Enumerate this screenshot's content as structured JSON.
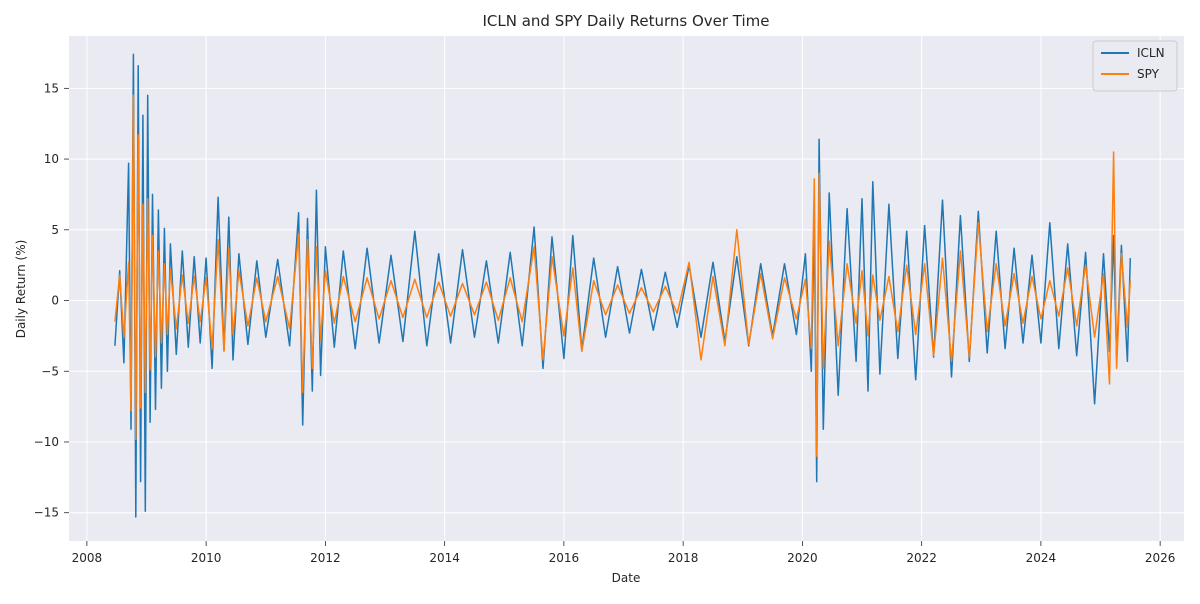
{
  "chart_data": {
    "type": "line",
    "title": "ICLN and SPY Daily Returns Over Time",
    "xlabel": "Date",
    "ylabel": "Daily Return (%)",
    "xlim": [
      2007.7,
      2026.4
    ],
    "ylim": [
      -17.0,
      18.7
    ],
    "x_ticks": [
      2008,
      2010,
      2012,
      2014,
      2016,
      2018,
      2020,
      2022,
      2024,
      2026
    ],
    "x_tick_labels": [
      "2008",
      "2010",
      "2012",
      "2014",
      "2016",
      "2018",
      "2020",
      "2022",
      "2024",
      "2026"
    ],
    "y_ticks": [
      -15,
      -10,
      -5,
      0,
      5,
      10,
      15
    ],
    "y_tick_labels": [
      "−15",
      "−10",
      "−5",
      "0",
      "5",
      "10",
      "15"
    ],
    "grid": true,
    "legend_position": "top-right",
    "series": [
      {
        "name": "ICLN",
        "color": "#1f77b4",
        "x": [
          2008.47,
          2008.55,
          2008.62,
          2008.7,
          2008.74,
          2008.78,
          2008.82,
          2008.86,
          2008.9,
          2008.94,
          2008.98,
          2009.02,
          2009.06,
          2009.1,
          2009.15,
          2009.2,
          2009.25,
          2009.3,
          2009.35,
          2009.4,
          2009.5,
          2009.6,
          2009.7,
          2009.8,
          2009.9,
          2010.0,
          2010.1,
          2010.2,
          2010.3,
          2010.38,
          2010.45,
          2010.55,
          2010.7,
          2010.85,
          2011.0,
          2011.2,
          2011.4,
          2011.55,
          2011.62,
          2011.7,
          2011.78,
          2011.85,
          2011.92,
          2012.0,
          2012.15,
          2012.3,
          2012.5,
          2012.7,
          2012.9,
          2013.1,
          2013.3,
          2013.5,
          2013.7,
          2013.9,
          2014.1,
          2014.3,
          2014.5,
          2014.7,
          2014.9,
          2015.1,
          2015.3,
          2015.5,
          2015.65,
          2015.8,
          2016.0,
          2016.15,
          2016.3,
          2016.5,
          2016.7,
          2016.9,
          2017.1,
          2017.3,
          2017.5,
          2017.7,
          2017.9,
          2018.1,
          2018.3,
          2018.5,
          2018.7,
          2018.9,
          2019.1,
          2019.3,
          2019.5,
          2019.7,
          2019.9,
          2020.05,
          2020.15,
          2020.2,
          2020.24,
          2020.28,
          2020.35,
          2020.45,
          2020.6,
          2020.75,
          2020.9,
          2021.0,
          2021.1,
          2021.18,
          2021.3,
          2021.45,
          2021.6,
          2021.75,
          2021.9,
          2022.05,
          2022.2,
          2022.35,
          2022.5,
          2022.65,
          2022.8,
          2022.95,
          2023.1,
          2023.25,
          2023.4,
          2023.55,
          2023.7,
          2023.85,
          2024.0,
          2024.15,
          2024.3,
          2024.45,
          2024.6,
          2024.75,
          2024.9,
          2025.05,
          2025.15,
          2025.22,
          2025.27,
          2025.35,
          2025.45,
          2025.5
        ],
        "y": [
          -3.2,
          2.1,
          -4.4,
          9.7,
          -9.1,
          17.4,
          -15.3,
          16.6,
          -12.8,
          13.1,
          -14.9,
          14.5,
          -8.6,
          7.5,
          -7.7,
          6.4,
          -6.2,
          5.1,
          -5.0,
          4.0,
          -3.8,
          3.5,
          -3.3,
          3.1,
          -3.0,
          3.0,
          -4.8,
          7.3,
          -3.5,
          5.9,
          -4.2,
          3.3,
          -3.1,
          2.8,
          -2.6,
          2.9,
          -3.2,
          6.2,
          -8.8,
          5.8,
          -6.4,
          7.8,
          -5.3,
          3.8,
          -3.3,
          3.5,
          -3.4,
          3.7,
          -3.0,
          3.2,
          -2.9,
          4.9,
          -3.2,
          3.3,
          -3.0,
          3.6,
          -2.6,
          2.8,
          -3.0,
          3.4,
          -3.2,
          5.2,
          -4.8,
          4.5,
          -4.1,
          4.6,
          -3.5,
          3.0,
          -2.6,
          2.4,
          -2.3,
          2.2,
          -2.1,
          2.0,
          -1.9,
          2.5,
          -2.6,
          2.7,
          -2.9,
          3.1,
          -3.2,
          2.6,
          -2.5,
          2.6,
          -2.4,
          3.3,
          -5.0,
          5.5,
          -12.8,
          11.4,
          -9.1,
          7.6,
          -6.7,
          6.5,
          -4.3,
          7.2,
          -6.4,
          8.4,
          -5.2,
          6.8,
          -4.1,
          4.9,
          -5.6,
          5.3,
          -4.0,
          7.1,
          -5.4,
          6.0,
          -4.3,
          6.3,
          -3.7,
          4.9,
          -3.4,
          3.7,
          -3.0,
          3.2,
          -3.0,
          5.5,
          -3.4,
          4.0,
          -3.9,
          3.4,
          -7.3,
          3.3,
          -3.6,
          4.6,
          -4.1,
          3.9,
          -4.3,
          3.0
        ]
      },
      {
        "name": "SPY",
        "color": "#ff7f0e",
        "x": [
          2008.47,
          2008.55,
          2008.62,
          2008.7,
          2008.74,
          2008.78,
          2008.82,
          2008.86,
          2008.9,
          2008.94,
          2008.98,
          2009.02,
          2009.06,
          2009.1,
          2009.15,
          2009.2,
          2009.25,
          2009.3,
          2009.35,
          2009.4,
          2009.5,
          2009.6,
          2009.7,
          2009.8,
          2009.9,
          2010.0,
          2010.1,
          2010.2,
          2010.3,
          2010.38,
          2010.45,
          2010.55,
          2010.7,
          2010.85,
          2011.0,
          2011.2,
          2011.4,
          2011.55,
          2011.62,
          2011.7,
          2011.78,
          2011.85,
          2011.92,
          2012.0,
          2012.15,
          2012.3,
          2012.5,
          2012.7,
          2012.9,
          2013.1,
          2013.3,
          2013.5,
          2013.7,
          2013.9,
          2014.1,
          2014.3,
          2014.5,
          2014.7,
          2014.9,
          2015.1,
          2015.3,
          2015.5,
          2015.65,
          2015.8,
          2016.0,
          2016.15,
          2016.3,
          2016.5,
          2016.7,
          2016.9,
          2017.1,
          2017.3,
          2017.5,
          2017.7,
          2017.9,
          2018.1,
          2018.3,
          2018.5,
          2018.7,
          2018.9,
          2019.1,
          2019.3,
          2019.5,
          2019.7,
          2019.9,
          2020.05,
          2020.15,
          2020.2,
          2020.24,
          2020.28,
          2020.35,
          2020.45,
          2020.6,
          2020.75,
          2020.9,
          2021.0,
          2021.1,
          2021.18,
          2021.3,
          2021.45,
          2021.6,
          2021.75,
          2021.9,
          2022.05,
          2022.2,
          2022.35,
          2022.5,
          2022.65,
          2022.8,
          2022.95,
          2023.1,
          2023.25,
          2023.4,
          2023.55,
          2023.7,
          2023.85,
          2024.0,
          2024.15,
          2024.3,
          2024.45,
          2024.6,
          2024.75,
          2024.9,
          2025.05,
          2025.15,
          2025.22,
          2025.27,
          2025.35,
          2025.45,
          2025.5
        ],
        "y": [
          -1.5,
          1.8,
          -2.6,
          2.7,
          -7.8,
          14.5,
          -9.8,
          11.7,
          -7.6,
          6.8,
          -6.5,
          7.2,
          -4.9,
          4.6,
          -4.0,
          3.5,
          -3.0,
          2.6,
          -2.4,
          2.2,
          -2.0,
          1.8,
          -1.6,
          1.7,
          -1.5,
          1.6,
          -3.4,
          4.3,
          -3.6,
          3.7,
          -2.4,
          2.1,
          -1.8,
          1.6,
          -1.5,
          1.7,
          -2.0,
          4.7,
          -6.5,
          4.3,
          -4.8,
          3.8,
          -2.8,
          2.1,
          -1.6,
          1.7,
          -1.5,
          1.6,
          -1.3,
          1.4,
          -1.2,
          1.5,
          -1.2,
          1.3,
          -1.1,
          1.2,
          -1.0,
          1.3,
          -1.4,
          1.6,
          -1.5,
          3.8,
          -4.2,
          3.1,
          -2.5,
          2.3,
          -3.6,
          1.4,
          -1.0,
          1.1,
          -0.9,
          0.9,
          -0.8,
          1.0,
          -0.9,
          2.7,
          -4.2,
          1.7,
          -3.2,
          5.0,
          -3.1,
          1.9,
          -2.7,
          1.6,
          -1.3,
          1.5,
          -3.4,
          8.6,
          -11.0,
          9.0,
          -4.8,
          4.2,
          -3.2,
          2.6,
          -1.6,
          2.1,
          -2.5,
          1.8,
          -1.4,
          1.7,
          -2.2,
          2.5,
          -2.4,
          2.6,
          -3.9,
          3.0,
          -4.3,
          3.5,
          -4.0,
          5.5,
          -2.2,
          2.6,
          -1.8,
          1.9,
          -1.6,
          1.7,
          -1.3,
          1.4,
          -1.1,
          2.3,
          -1.8,
          2.5,
          -2.6,
          1.9,
          -5.9,
          10.5,
          -4.8,
          3.3,
          -1.9,
          1.4
        ]
      }
    ]
  }
}
